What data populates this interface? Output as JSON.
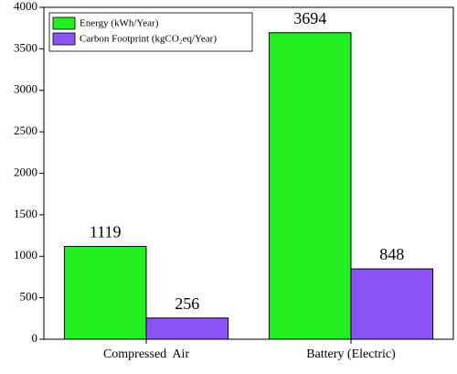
{
  "chart_data": {
    "type": "bar",
    "categories": [
      "Compressed  Air",
      "Battery (Electric)"
    ],
    "series": [
      {
        "name": "Energy (kWh/Year)",
        "color": "#22ee22",
        "values": [
          1119,
          3694
        ]
      },
      {
        "name": "Carbon Footprint (kgCO₂eq/Year)",
        "color": "#8b52f5",
        "values": [
          256,
          848
        ]
      }
    ],
    "ylim": [
      0,
      4000
    ],
    "yticks": [
      0,
      500,
      1000,
      1500,
      2000,
      2500,
      3000,
      3500,
      4000
    ],
    "legend": "top-left"
  }
}
